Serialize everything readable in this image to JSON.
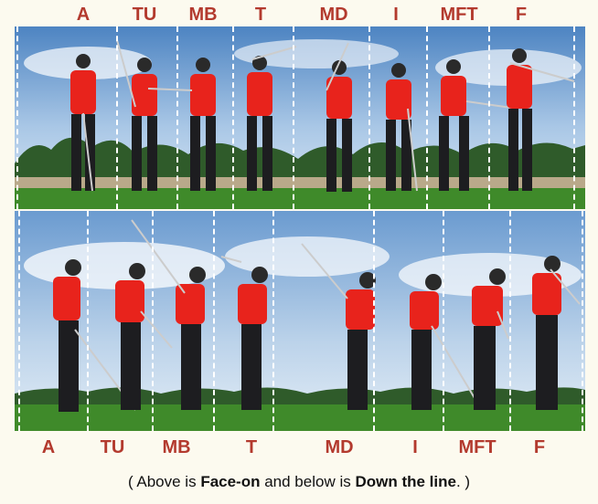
{
  "face_on_labels": [
    "A",
    "TU",
    "MB",
    "T",
    "MD",
    "I",
    "MFT",
    "F"
  ],
  "down_the_line_labels": [
    "A",
    "TU",
    "MB",
    "T",
    "MD",
    "I",
    "MFT",
    "F"
  ],
  "caption": {
    "open": "( Above is ",
    "bold1": "Face-on",
    "mid": " and below is ",
    "bold2": "Down the line",
    "close": ". )"
  },
  "colors": {
    "label": "#b33a2e",
    "shirt": "#e8231c",
    "pants": "#1d1d20",
    "sky_top": "#4d84c2",
    "grass": "#3f8a2a",
    "background": "#fcfaef"
  }
}
